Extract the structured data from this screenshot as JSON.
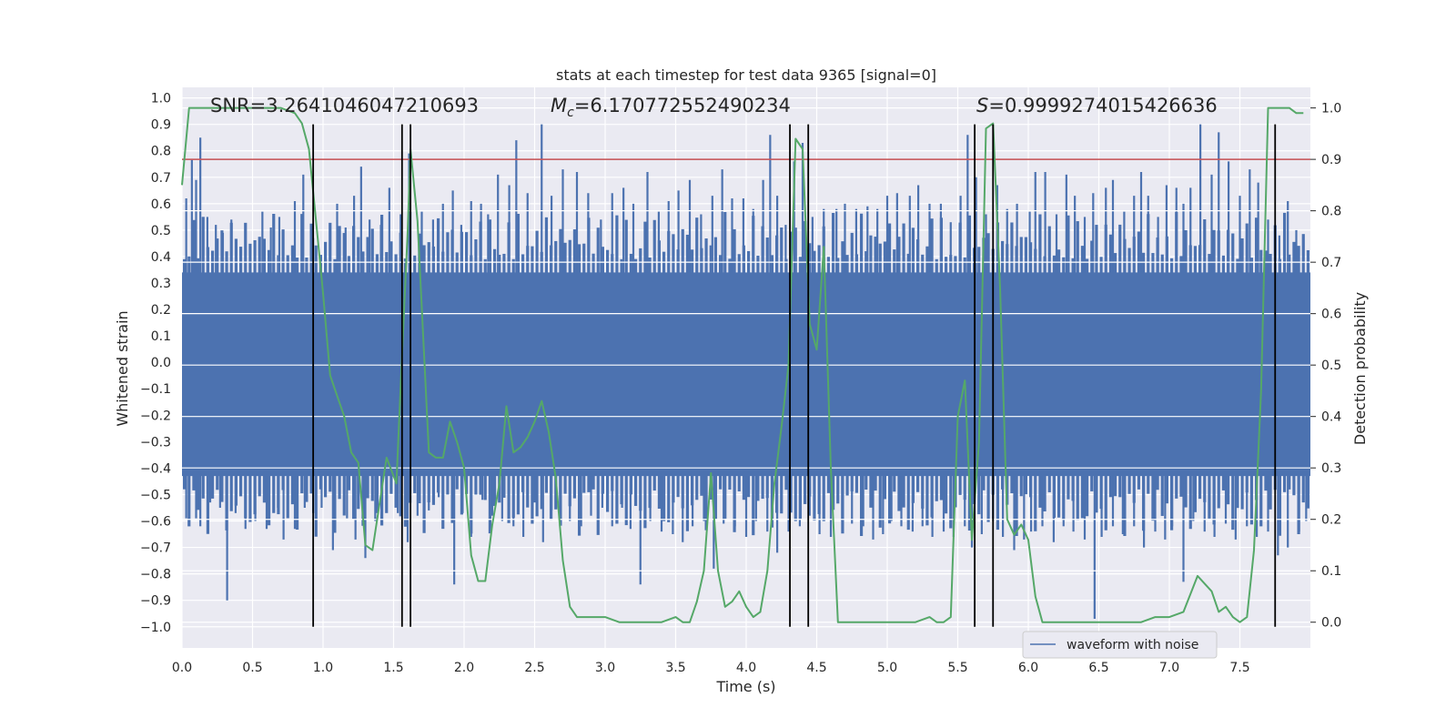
{
  "chart_data": {
    "type": "line",
    "title": "stats at each timestep for test data 9365 [signal=0]",
    "xlabel": "Time (s)",
    "ylabel": "Whitened strain",
    "y2label": "Detection probability",
    "xlim": [
      0.0,
      8.0
    ],
    "ylim": [
      -1.08,
      1.04
    ],
    "y2lim": [
      -0.05,
      1.04
    ],
    "xticks": [
      0.0,
      0.5,
      1.0,
      1.5,
      2.0,
      2.5,
      3.0,
      3.5,
      4.0,
      4.5,
      5.0,
      5.5,
      6.0,
      6.5,
      7.0,
      7.5
    ],
    "xtick_labels": [
      "0.0",
      "0.5",
      "1.0",
      "1.5",
      "2.0",
      "2.5",
      "3.0",
      "3.5",
      "4.0",
      "4.5",
      "5.0",
      "5.5",
      "6.0",
      "6.5",
      "7.0",
      "7.5"
    ],
    "yticks": [
      1.0,
      0.9,
      0.8,
      0.7,
      0.6,
      0.5,
      0.4,
      0.3,
      0.2,
      0.1,
      0.0,
      -0.1,
      -0.2,
      -0.3,
      -0.4,
      -0.5,
      -0.6,
      -0.7,
      -0.8,
      -0.9,
      -1.0
    ],
    "ytick_labels": [
      "1.0",
      "0.9",
      "0.8",
      "0.7",
      "0.6",
      "0.5",
      "0.4",
      "0.3",
      "0.2",
      "0.1",
      "0.0",
      "−0.1",
      "−0.2",
      "−0.3",
      "−0.4",
      "−0.5",
      "−0.6",
      "−0.7",
      "−0.8",
      "−0.9",
      "−1.0"
    ],
    "y2ticks": [
      1.0,
      0.9,
      0.8,
      0.7,
      0.6,
      0.5,
      0.4,
      0.3,
      0.2,
      0.1,
      0.0
    ],
    "y2tick_labels": [
      "1.0",
      "0.9",
      "0.8",
      "0.7",
      "0.6",
      "0.5",
      "0.4",
      "0.3",
      "0.2",
      "0.1",
      "0.0"
    ],
    "annotations": {
      "snr": "SNR=3.2641046047210693",
      "mc_symbol": "M",
      "mc_sub": "c",
      "mc_value": "=6.170772552490234",
      "s_symbol": "S",
      "s_value": "=0.9999274015426636"
    },
    "legend": {
      "label": "waveform with noise",
      "position": "lower-right"
    },
    "threshold": {
      "y2_value": 0.9,
      "color": "#c44e52"
    },
    "waveform": {
      "name": "waveform with noise",
      "color": "#4c72b0",
      "core_band": [
        -0.43,
        0.34
      ],
      "spikes_up": [
        [
          0.03,
          0.62
        ],
        [
          0.07,
          0.77
        ],
        [
          0.1,
          0.69
        ],
        [
          0.13,
          0.85
        ],
        [
          0.18,
          0.55
        ],
        [
          0.24,
          0.52
        ],
        [
          0.29,
          0.49
        ],
        [
          0.35,
          0.54
        ],
        [
          0.45,
          0.48
        ],
        [
          0.57,
          0.57
        ],
        [
          0.63,
          0.51
        ],
        [
          0.69,
          0.55
        ],
        [
          0.8,
          0.61
        ],
        [
          0.86,
          0.71
        ],
        [
          0.93,
          0.47
        ],
        [
          1.02,
          0.39
        ],
        [
          1.1,
          0.6
        ],
        [
          1.16,
          0.51
        ],
        [
          1.22,
          0.63
        ],
        [
          1.27,
          0.74
        ],
        [
          1.33,
          0.54
        ],
        [
          1.41,
          0.52
        ],
        [
          1.47,
          0.66
        ],
        [
          1.55,
          0.56
        ],
        [
          1.61,
          0.79
        ],
        [
          1.7,
          0.57
        ],
        [
          1.78,
          0.54
        ],
        [
          1.85,
          0.6
        ],
        [
          1.92,
          0.65
        ],
        [
          1.98,
          0.52
        ],
        [
          2.05,
          0.61
        ],
        [
          2.12,
          0.6
        ],
        [
          2.17,
          0.56
        ],
        [
          2.24,
          0.71
        ],
        [
          2.32,
          0.67
        ],
        [
          2.37,
          0.84
        ],
        [
          2.45,
          0.64
        ],
        [
          2.55,
          0.9
        ],
        [
          2.62,
          0.63
        ],
        [
          2.7,
          0.73
        ],
        [
          2.8,
          0.72
        ],
        [
          2.88,
          0.64
        ],
        [
          2.97,
          0.54
        ],
        [
          3.05,
          0.64
        ],
        [
          3.13,
          0.66
        ],
        [
          3.2,
          0.6
        ],
        [
          3.3,
          0.72
        ],
        [
          3.38,
          0.57
        ],
        [
          3.45,
          0.61
        ],
        [
          3.52,
          0.65
        ],
        [
          3.6,
          0.69
        ],
        [
          3.68,
          0.56
        ],
        [
          3.76,
          0.63
        ],
        [
          3.83,
          0.73
        ],
        [
          3.9,
          0.62
        ],
        [
          3.98,
          0.62
        ],
        [
          4.05,
          0.58
        ],
        [
          4.12,
          0.69
        ],
        [
          4.17,
          0.86
        ],
        [
          4.22,
          0.63
        ],
        [
          4.28,
          0.52
        ],
        [
          4.34,
          0.76
        ],
        [
          4.4,
          0.83
        ],
        [
          4.47,
          0.55
        ],
        [
          4.55,
          0.58
        ],
        [
          4.64,
          0.58
        ],
        [
          4.7,
          0.6
        ],
        [
          4.78,
          0.58
        ],
        [
          4.86,
          0.59
        ],
        [
          4.93,
          0.58
        ],
        [
          5.0,
          0.63
        ],
        [
          5.07,
          0.64
        ],
        [
          5.16,
          0.63
        ],
        [
          5.22,
          0.67
        ],
        [
          5.3,
          0.6
        ],
        [
          5.38,
          0.6
        ],
        [
          5.45,
          0.53
        ],
        [
          5.52,
          0.63
        ],
        [
          5.57,
          0.86
        ],
        [
          5.63,
          0.7
        ],
        [
          5.7,
          0.56
        ],
        [
          5.78,
          0.67
        ],
        [
          5.85,
          0.58
        ],
        [
          5.92,
          0.6
        ],
        [
          6.01,
          0.57
        ],
        [
          6.05,
          0.72
        ],
        [
          6.12,
          0.72
        ],
        [
          6.2,
          0.56
        ],
        [
          6.27,
          0.71
        ],
        [
          6.33,
          0.63
        ],
        [
          6.4,
          0.55
        ],
        [
          6.46,
          0.64
        ],
        [
          6.55,
          0.66
        ],
        [
          6.6,
          0.69
        ],
        [
          6.68,
          0.57
        ],
        [
          6.75,
          0.63
        ],
        [
          6.8,
          0.72
        ],
        [
          6.85,
          0.63
        ],
        [
          6.92,
          0.55
        ],
        [
          6.98,
          0.67
        ],
        [
          7.05,
          0.66
        ],
        [
          7.1,
          0.6
        ],
        [
          7.15,
          0.66
        ],
        [
          7.22,
          0.9
        ],
        [
          7.3,
          0.71
        ],
        [
          7.35,
          0.87
        ],
        [
          7.42,
          0.76
        ],
        [
          7.5,
          0.63
        ],
        [
          7.57,
          0.73
        ],
        [
          7.63,
          0.68
        ],
        [
          7.7,
          0.54
        ],
        [
          7.78,
          0.48
        ],
        [
          7.84,
          0.61
        ],
        [
          7.9,
          0.5
        ],
        [
          7.95,
          0.46
        ]
      ],
      "spikes_down": [
        [
          0.03,
          -0.59
        ],
        [
          0.1,
          -0.59
        ],
        [
          0.13,
          -0.62
        ],
        [
          0.2,
          -0.53
        ],
        [
          0.27,
          -0.55
        ],
        [
          0.32,
          -0.9
        ],
        [
          0.38,
          -0.57
        ],
        [
          0.45,
          -0.63
        ],
        [
          0.52,
          -0.6
        ],
        [
          0.6,
          -0.63
        ],
        [
          0.68,
          -0.55
        ],
        [
          0.72,
          -0.67
        ],
        [
          0.8,
          -0.63
        ],
        [
          0.87,
          -0.55
        ],
        [
          0.93,
          -0.57
        ],
        [
          0.99,
          -0.55
        ],
        [
          1.07,
          -0.71
        ],
        [
          1.17,
          -0.59
        ],
        [
          1.23,
          -0.67
        ],
        [
          1.3,
          -0.74
        ],
        [
          1.37,
          -0.6
        ],
        [
          1.45,
          -0.54
        ],
        [
          1.53,
          -0.57
        ],
        [
          1.6,
          -0.68
        ],
        [
          1.67,
          -0.58
        ],
        [
          1.75,
          -0.56
        ],
        [
          1.82,
          -0.51
        ],
        [
          1.93,
          -0.84
        ],
        [
          1.99,
          -0.57
        ],
        [
          2.05,
          -0.66
        ],
        [
          2.13,
          -0.52
        ],
        [
          2.2,
          -0.58
        ],
        [
          2.27,
          -0.6
        ],
        [
          2.35,
          -0.62
        ],
        [
          2.42,
          -0.66
        ],
        [
          2.5,
          -0.53
        ],
        [
          2.56,
          -0.68
        ],
        [
          2.62,
          -0.56
        ],
        [
          2.68,
          -0.61
        ],
        [
          2.75,
          -0.6
        ],
        [
          2.83,
          -0.62
        ],
        [
          2.9,
          -0.58
        ],
        [
          2.98,
          -0.55
        ],
        [
          3.05,
          -0.62
        ],
        [
          3.12,
          -0.55
        ],
        [
          3.18,
          -0.63
        ],
        [
          3.25,
          -0.84
        ],
        [
          3.32,
          -0.6
        ],
        [
          3.4,
          -0.64
        ],
        [
          3.48,
          -0.65
        ],
        [
          3.55,
          -0.68
        ],
        [
          3.62,
          -0.62
        ],
        [
          3.7,
          -0.6
        ],
        [
          3.77,
          -0.78
        ],
        [
          3.84,
          -0.61
        ],
        [
          3.92,
          -0.62
        ],
        [
          4.0,
          -0.66
        ],
        [
          4.07,
          -0.6
        ],
        [
          4.15,
          -0.64
        ],
        [
          4.22,
          -0.72
        ],
        [
          4.3,
          -0.64
        ],
        [
          4.38,
          -0.62
        ],
        [
          4.45,
          -0.58
        ],
        [
          4.52,
          -0.65
        ],
        [
          4.6,
          -0.66
        ],
        [
          4.68,
          -0.6
        ],
        [
          4.75,
          -0.61
        ],
        [
          4.83,
          -0.62
        ],
        [
          4.9,
          -0.67
        ],
        [
          4.97,
          -0.65
        ],
        [
          5.03,
          -0.6
        ],
        [
          5.1,
          -0.62
        ],
        [
          5.18,
          -0.64
        ],
        [
          5.25,
          -0.62
        ],
        [
          5.32,
          -0.66
        ],
        [
          5.4,
          -0.64
        ],
        [
          5.47,
          -0.66
        ],
        [
          5.55,
          -0.62
        ],
        [
          5.6,
          -0.7
        ],
        [
          5.67,
          -0.65
        ],
        [
          5.75,
          -0.6
        ],
        [
          5.82,
          -0.66
        ],
        [
          5.9,
          -0.71
        ],
        [
          5.97,
          -0.67
        ],
        [
          6.02,
          -0.64
        ],
        [
          6.1,
          -0.62
        ],
        [
          6.18,
          -0.68
        ],
        [
          6.25,
          -0.62
        ],
        [
          6.32,
          -0.64
        ],
        [
          6.4,
          -0.67
        ],
        [
          6.47,
          -0.97
        ],
        [
          6.52,
          -0.66
        ],
        [
          6.6,
          -0.62
        ],
        [
          6.67,
          -0.65
        ],
        [
          6.75,
          -0.62
        ],
        [
          6.82,
          -0.7
        ],
        [
          6.9,
          -0.64
        ],
        [
          6.97,
          -0.67
        ],
        [
          7.02,
          -0.62
        ],
        [
          7.1,
          -0.83
        ],
        [
          7.17,
          -0.6
        ],
        [
          7.25,
          -0.64
        ],
        [
          7.32,
          -0.66
        ],
        [
          7.4,
          -0.61
        ],
        [
          7.47,
          -0.67
        ],
        [
          7.55,
          -0.62
        ],
        [
          7.62,
          -0.66
        ],
        [
          7.7,
          -0.64
        ],
        [
          7.77,
          -0.73
        ],
        [
          7.84,
          -0.7
        ],
        [
          7.92,
          -0.64
        ],
        [
          7.97,
          -0.6
        ]
      ]
    },
    "detection_probability": {
      "color": "#55a868",
      "x": [
        0.0,
        0.05,
        0.1,
        0.15,
        0.2,
        0.3,
        0.4,
        0.5,
        0.6,
        0.7,
        0.8,
        0.85,
        0.9,
        0.95,
        1.0,
        1.05,
        1.1,
        1.15,
        1.2,
        1.25,
        1.3,
        1.35,
        1.45,
        1.52,
        1.56,
        1.6,
        1.62,
        1.67,
        1.72,
        1.75,
        1.8,
        1.85,
        1.9,
        1.95,
        2.0,
        2.05,
        2.1,
        2.15,
        2.2,
        2.25,
        2.3,
        2.35,
        2.4,
        2.45,
        2.5,
        2.55,
        2.6,
        2.65,
        2.7,
        2.75,
        2.8,
        2.85,
        3.0,
        3.1,
        3.2,
        3.3,
        3.4,
        3.5,
        3.55,
        3.6,
        3.65,
        3.7,
        3.75,
        3.8,
        3.85,
        3.9,
        3.95,
        4.0,
        4.05,
        4.1,
        4.15,
        4.2,
        4.25,
        4.3,
        4.35,
        4.4,
        4.45,
        4.5,
        4.55,
        4.6,
        4.65,
        4.7,
        4.75,
        4.8,
        4.9,
        5.0,
        5.1,
        5.2,
        5.3,
        5.35,
        5.4,
        5.45,
        5.5,
        5.55,
        5.6,
        5.65,
        5.7,
        5.75,
        5.8,
        5.85,
        5.9,
        5.95,
        6.0,
        6.05,
        6.1,
        6.2,
        6.3,
        6.4,
        6.5,
        6.6,
        6.7,
        6.8,
        6.9,
        7.0,
        7.1,
        7.2,
        7.3,
        7.35,
        7.4,
        7.45,
        7.5,
        7.55,
        7.6,
        7.65,
        7.7,
        7.75,
        7.8,
        7.85,
        7.9,
        7.95
      ],
      "y": [
        0.85,
        1.0,
        1.0,
        1.0,
        1.0,
        1.0,
        1.0,
        1.0,
        1.0,
        1.0,
        0.99,
        0.97,
        0.92,
        0.78,
        0.64,
        0.48,
        0.44,
        0.4,
        0.33,
        0.31,
        0.15,
        0.14,
        0.32,
        0.27,
        0.52,
        0.76,
        0.92,
        0.78,
        0.5,
        0.33,
        0.32,
        0.32,
        0.39,
        0.35,
        0.3,
        0.13,
        0.08,
        0.08,
        0.19,
        0.27,
        0.42,
        0.33,
        0.34,
        0.36,
        0.39,
        0.43,
        0.37,
        0.28,
        0.12,
        0.03,
        0.01,
        0.01,
        0.01,
        0.0,
        0.0,
        0.0,
        0.0,
        0.01,
        0.0,
        0.0,
        0.04,
        0.1,
        0.29,
        0.1,
        0.03,
        0.04,
        0.06,
        0.03,
        0.01,
        0.02,
        0.1,
        0.27,
        0.38,
        0.5,
        0.94,
        0.92,
        0.58,
        0.53,
        0.73,
        0.3,
        0.0,
        0.0,
        0.0,
        0.0,
        0.0,
        0.0,
        0.0,
        0.0,
        0.01,
        0.0,
        0.0,
        0.01,
        0.4,
        0.47,
        0.16,
        0.35,
        0.96,
        0.97,
        0.65,
        0.2,
        0.17,
        0.19,
        0.16,
        0.05,
        0.0,
        0.0,
        0.0,
        0.0,
        0.0,
        0.0,
        0.0,
        0.0,
        0.01,
        0.01,
        0.02,
        0.09,
        0.06,
        0.02,
        0.03,
        0.01,
        0.0,
        0.01,
        0.14,
        0.45,
        1.0,
        1.0,
        1.0,
        1.0,
        0.99,
        0.99
      ]
    },
    "vlines_x": [
      0.93,
      1.56,
      1.62,
      4.31,
      4.44,
      5.62,
      5.75,
      7.75
    ]
  }
}
